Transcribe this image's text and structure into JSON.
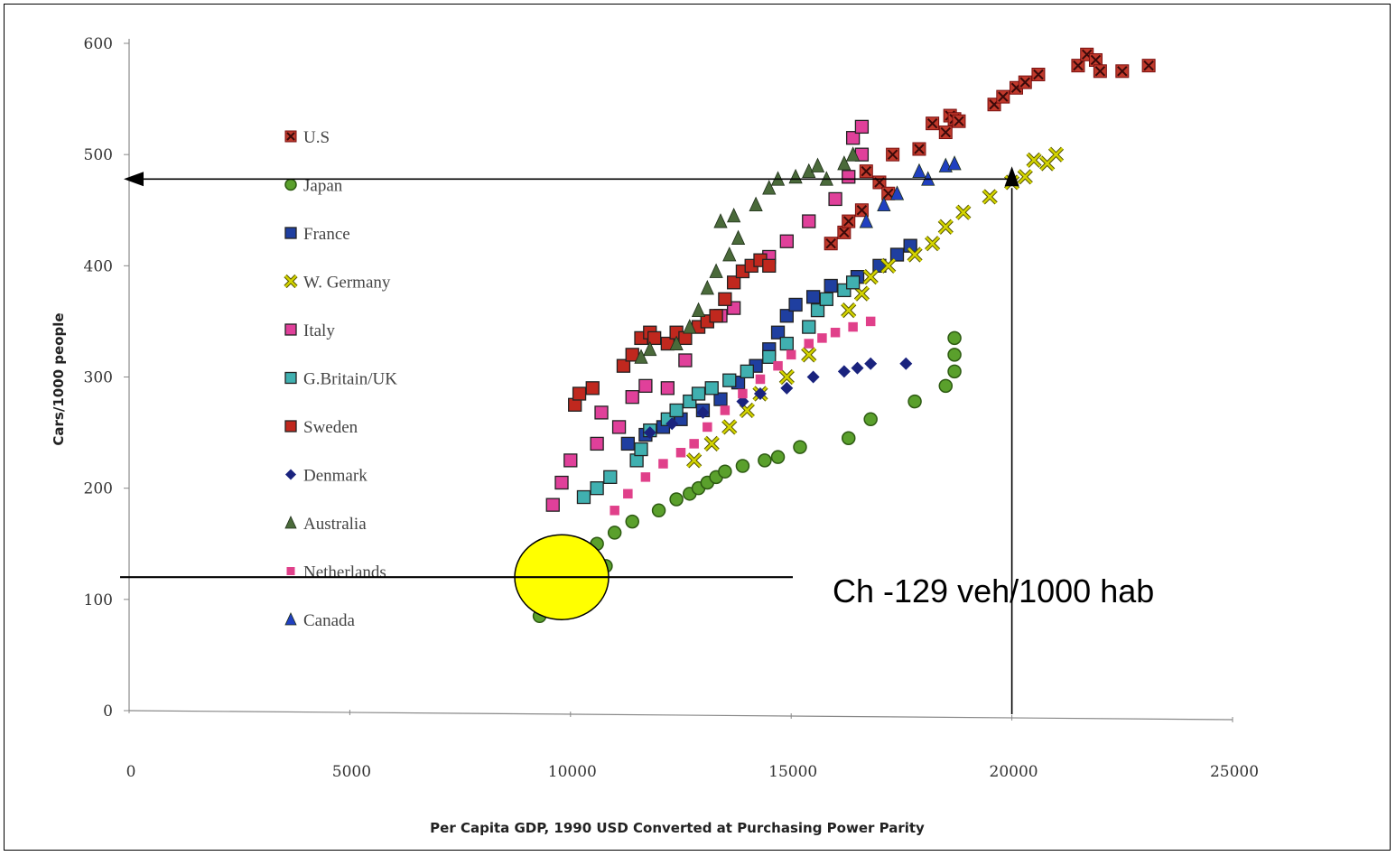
{
  "chart_data": {
    "type": "scatter",
    "title": "",
    "xlabel": "Per Capita GDP, 1990  USD Converted at Purchasing Power Parity",
    "ylabel": "Cars/1000 people",
    "xlim": [
      0,
      25000
    ],
    "ylim": [
      0,
      600
    ],
    "x_ticks": [
      "0",
      "5000",
      "10000",
      "15000",
      "20000",
      "25000"
    ],
    "y_ticks": [
      "0",
      "100",
      "200",
      "300",
      "400",
      "500",
      "600"
    ],
    "grid": false,
    "legend_position": "top-left inside plot",
    "series": [
      {
        "name": "U.S",
        "marker": "x-box",
        "color": "#c0392b",
        "points": [
          [
            15900,
            420
          ],
          [
            16200,
            430
          ],
          [
            16300,
            440
          ],
          [
            16600,
            450
          ],
          [
            16700,
            485
          ],
          [
            17000,
            475
          ],
          [
            17200,
            465
          ],
          [
            17300,
            500
          ],
          [
            17900,
            505
          ],
          [
            18200,
            528
          ],
          [
            18500,
            520
          ],
          [
            18600,
            535
          ],
          [
            18700,
            532
          ],
          [
            18800,
            530
          ],
          [
            19600,
            545
          ],
          [
            19800,
            552
          ],
          [
            20100,
            560
          ],
          [
            20300,
            565
          ],
          [
            20600,
            572
          ],
          [
            21500,
            580
          ],
          [
            21700,
            590
          ],
          [
            21900,
            585
          ],
          [
            22000,
            575
          ],
          [
            22500,
            575
          ],
          [
            23100,
            580
          ]
        ]
      },
      {
        "name": "Japan",
        "marker": "circle",
        "color": "#5aa02c",
        "points": [
          [
            9300,
            85
          ],
          [
            9600,
            115
          ],
          [
            10000,
            135
          ],
          [
            10300,
            145
          ],
          [
            10600,
            150
          ],
          [
            10800,
            130
          ],
          [
            11000,
            160
          ],
          [
            11400,
            170
          ],
          [
            12000,
            180
          ],
          [
            12400,
            190
          ],
          [
            12700,
            195
          ],
          [
            12900,
            200
          ],
          [
            13100,
            205
          ],
          [
            13300,
            210
          ],
          [
            13500,
            215
          ],
          [
            13900,
            220
          ],
          [
            14400,
            225
          ],
          [
            14700,
            228
          ],
          [
            15200,
            237
          ],
          [
            16300,
            245
          ],
          [
            16800,
            262
          ],
          [
            17800,
            278
          ],
          [
            18500,
            292
          ],
          [
            18700,
            305
          ],
          [
            18700,
            320
          ],
          [
            18700,
            335
          ]
        ]
      },
      {
        "name": "France",
        "marker": "square",
        "color": "#1f3fa0",
        "points": [
          [
            11300,
            240
          ],
          [
            11700,
            248
          ],
          [
            12100,
            255
          ],
          [
            12500,
            262
          ],
          [
            13000,
            270
          ],
          [
            13400,
            280
          ],
          [
            13800,
            295
          ],
          [
            14200,
            310
          ],
          [
            14500,
            325
          ],
          [
            14700,
            340
          ],
          [
            14900,
            355
          ],
          [
            15100,
            365
          ],
          [
            15500,
            372
          ],
          [
            15900,
            382
          ],
          [
            16500,
            390
          ],
          [
            17000,
            400
          ],
          [
            17400,
            410
          ],
          [
            17700,
            418
          ]
        ]
      },
      {
        "name": "W. Germany",
        "marker": "x",
        "color": "#d4d400",
        "points": [
          [
            12800,
            225
          ],
          [
            13200,
            240
          ],
          [
            13600,
            255
          ],
          [
            14000,
            270
          ],
          [
            14300,
            285
          ],
          [
            14900,
            300
          ],
          [
            15400,
            320
          ],
          [
            16300,
            360
          ],
          [
            16600,
            375
          ],
          [
            16800,
            390
          ],
          [
            17200,
            400
          ],
          [
            17800,
            410
          ],
          [
            18200,
            420
          ],
          [
            18500,
            435
          ],
          [
            18900,
            448
          ],
          [
            19500,
            462
          ],
          [
            20000,
            475
          ],
          [
            20300,
            480
          ],
          [
            20500,
            495
          ],
          [
            20800,
            492
          ],
          [
            21000,
            500
          ]
        ]
      },
      {
        "name": "Italy",
        "marker": "square",
        "color": "#e0409a",
        "points": [
          [
            9600,
            185
          ],
          [
            9800,
            205
          ],
          [
            10000,
            225
          ],
          [
            10600,
            240
          ],
          [
            10700,
            268
          ],
          [
            11100,
            255
          ],
          [
            11400,
            282
          ],
          [
            11700,
            292
          ],
          [
            12200,
            290
          ],
          [
            12600,
            315
          ],
          [
            13100,
            350
          ],
          [
            13400,
            355
          ],
          [
            13700,
            362
          ],
          [
            14500,
            408
          ],
          [
            14900,
            422
          ],
          [
            15400,
            440
          ],
          [
            16000,
            460
          ],
          [
            16300,
            480
          ],
          [
            16400,
            515
          ],
          [
            16600,
            500
          ],
          [
            16600,
            525
          ]
        ]
      },
      {
        "name": "G.Britain/UK",
        "marker": "square",
        "color": "#40b0b0",
        "points": [
          [
            10300,
            192
          ],
          [
            10600,
            200
          ],
          [
            10900,
            210
          ],
          [
            11500,
            225
          ],
          [
            11600,
            235
          ],
          [
            11800,
            252
          ],
          [
            12200,
            262
          ],
          [
            12400,
            270
          ],
          [
            12700,
            278
          ],
          [
            12900,
            285
          ],
          [
            13200,
            290
          ],
          [
            13600,
            297
          ],
          [
            14000,
            305
          ],
          [
            14500,
            318
          ],
          [
            14900,
            330
          ],
          [
            15400,
            345
          ],
          [
            15600,
            360
          ],
          [
            15800,
            370
          ],
          [
            16200,
            378
          ],
          [
            16400,
            385
          ]
        ]
      },
      {
        "name": "Sweden",
        "marker": "square",
        "color": "#c0281e",
        "points": [
          [
            10100,
            275
          ],
          [
            10200,
            285
          ],
          [
            10500,
            290
          ],
          [
            11200,
            310
          ],
          [
            11400,
            320
          ],
          [
            11600,
            335
          ],
          [
            11800,
            340
          ],
          [
            11900,
            335
          ],
          [
            12200,
            330
          ],
          [
            12400,
            340
          ],
          [
            12600,
            335
          ],
          [
            12900,
            345
          ],
          [
            13100,
            350
          ],
          [
            13300,
            355
          ],
          [
            13500,
            370
          ],
          [
            13700,
            385
          ],
          [
            13900,
            395
          ],
          [
            14100,
            400
          ],
          [
            14300,
            405
          ],
          [
            14500,
            400
          ]
        ]
      },
      {
        "name": "Denmark",
        "marker": "diamond",
        "color": "#1a237e",
        "points": [
          [
            11800,
            250
          ],
          [
            12300,
            258
          ],
          [
            13000,
            268
          ],
          [
            13900,
            278
          ],
          [
            14300,
            285
          ],
          [
            14900,
            290
          ],
          [
            15500,
            300
          ],
          [
            16200,
            305
          ],
          [
            16500,
            308
          ],
          [
            16800,
            312
          ],
          [
            17600,
            312
          ]
        ]
      },
      {
        "name": "Australia",
        "marker": "triangle",
        "color": "#4a6a3a",
        "points": [
          [
            11600,
            318
          ],
          [
            11800,
            325
          ],
          [
            12400,
            330
          ],
          [
            12700,
            345
          ],
          [
            12900,
            360
          ],
          [
            13100,
            380
          ],
          [
            13300,
            395
          ],
          [
            13600,
            410
          ],
          [
            13800,
            425
          ],
          [
            13400,
            440
          ],
          [
            13700,
            445
          ],
          [
            14200,
            455
          ],
          [
            14500,
            470
          ],
          [
            14700,
            478
          ],
          [
            15100,
            480
          ],
          [
            15400,
            485
          ],
          [
            15600,
            490
          ],
          [
            15800,
            478
          ],
          [
            16200,
            492
          ],
          [
            16400,
            500
          ]
        ]
      },
      {
        "name": "Netherlands",
        "marker": "small-square",
        "color": "#e0408a",
        "points": [
          [
            11000,
            180
          ],
          [
            11300,
            195
          ],
          [
            11700,
            210
          ],
          [
            12100,
            222
          ],
          [
            12500,
            232
          ],
          [
            12800,
            240
          ],
          [
            13100,
            255
          ],
          [
            13500,
            270
          ],
          [
            13900,
            285
          ],
          [
            14300,
            298
          ],
          [
            14700,
            310
          ],
          [
            15000,
            320
          ],
          [
            15400,
            330
          ],
          [
            15700,
            335
          ],
          [
            16000,
            340
          ],
          [
            16400,
            345
          ],
          [
            16800,
            350
          ]
        ]
      },
      {
        "name": "Canada",
        "marker": "triangle",
        "color": "#2040c0",
        "points": [
          [
            16700,
            440
          ],
          [
            17100,
            455
          ],
          [
            17400,
            465
          ],
          [
            17900,
            485
          ],
          [
            18100,
            478
          ],
          [
            18500,
            490
          ],
          [
            18700,
            492
          ]
        ]
      }
    ],
    "annotations": {
      "label": "Ch -129 veh/1000 hab",
      "horizontal_line_y": 120,
      "ellipse_center": [
        9800,
        120
      ],
      "arrow_line_y": 478,
      "arrow_line_x": 20000
    }
  },
  "colors": {
    "highlight_ellipse": "#ffff00",
    "axis": "#888888",
    "annotation_line": "#000000"
  }
}
